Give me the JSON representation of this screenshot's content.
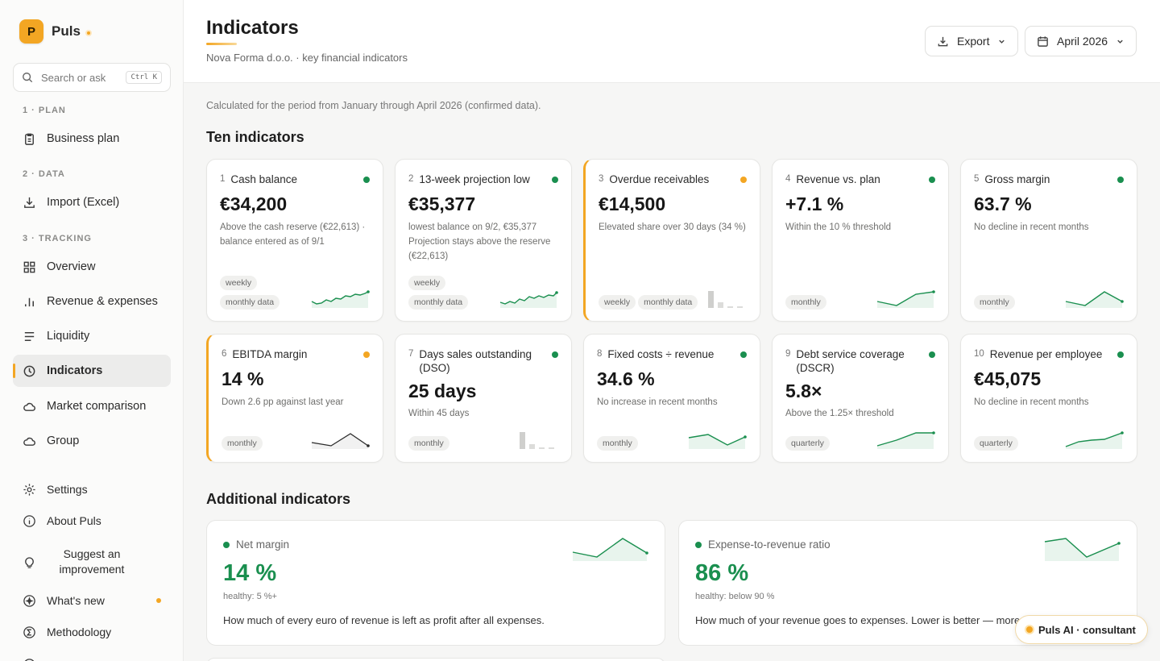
{
  "app": {
    "logo_letter": "P",
    "name": "Puls"
  },
  "search": {
    "placeholder": "Search or ask",
    "shortcut": "Ctrl K"
  },
  "sidebar": {
    "sections": [
      "1 · PLAN",
      "2 · DATA",
      "3 · TRACKING"
    ],
    "items": [
      {
        "label": "Business plan",
        "icon": "clipboard-icon"
      },
      {
        "label": "Import (Excel)",
        "icon": "download-icon"
      },
      {
        "label": "Overview",
        "icon": "grid-icon"
      },
      {
        "label": "Revenue & expenses",
        "icon": "bar-chart-icon"
      },
      {
        "label": "Liquidity",
        "icon": "lines-icon"
      },
      {
        "label": "Indicators",
        "icon": "clock-icon",
        "active": true
      },
      {
        "label": "Market comparison",
        "icon": "cloud-icon"
      },
      {
        "label": "Group",
        "icon": "cloud-icon"
      }
    ],
    "footer": [
      {
        "label": "Settings",
        "icon": "gear-icon"
      },
      {
        "label": "About Puls",
        "icon": "info-icon"
      },
      {
        "label": "Suggest an improvement",
        "icon": "lightbulb-icon"
      },
      {
        "label": "What's new",
        "icon": "sparkle-icon"
      },
      {
        "label": "Methodology",
        "icon": "sigma-icon"
      }
    ]
  },
  "header": {
    "title": "Indicators",
    "subtitle": "Nova Forma d.o.o. · key financial indicators",
    "export_label": "Export",
    "period_label": "April 2026"
  },
  "main": {
    "period_note": "Calculated for the period from January through April 2026 (confirmed data).",
    "ten_title": "Ten indicators",
    "additional_title": "Additional indicators"
  },
  "colors": {
    "accent": "#f3a623",
    "healthy": "#1a8f4f",
    "warning": "#f3a623"
  },
  "indicators": [
    {
      "num": "1",
      "title": "Cash balance",
      "status": "green",
      "value": "€34,200",
      "desc": "Above the cash reserve (€22,613) · balance entered as of 9/1",
      "tags": [
        "weekly",
        "monthly data"
      ]
    },
    {
      "num": "2",
      "title": "13-week projection low",
      "status": "green",
      "value": "€35,377",
      "desc": "lowest balance on 9/2, €35,377 Projection stays above the reserve (€22,613)",
      "tags": [
        "weekly",
        "monthly data"
      ]
    },
    {
      "num": "3",
      "title": "Overdue receivables",
      "status": "orange",
      "value": "€14,500",
      "desc": "Elevated share over 30 days (34 %)",
      "tags": [
        "weekly",
        "monthly data"
      ]
    },
    {
      "num": "4",
      "title": "Revenue vs. plan",
      "status": "green",
      "value": "+7.1 %",
      "desc": "Within the 10 % threshold",
      "tags": [
        "monthly"
      ]
    },
    {
      "num": "5",
      "title": "Gross margin",
      "status": "green",
      "value": "63.7 %",
      "desc": "No decline in recent months",
      "tags": [
        "monthly"
      ]
    },
    {
      "num": "6",
      "title": "EBITDA margin",
      "status": "orange",
      "value": "14 %",
      "desc": "Down 2.6 pp against last year",
      "tags": [
        "monthly"
      ]
    },
    {
      "num": "7",
      "title": "Days sales outstanding (DSO)",
      "status": "green",
      "value": "25 days",
      "desc": "Within 45 days",
      "tags": [
        "monthly"
      ]
    },
    {
      "num": "8",
      "title": "Fixed costs ÷ revenue",
      "status": "green",
      "value": "34.6 %",
      "desc": "No increase in recent months",
      "tags": [
        "monthly"
      ]
    },
    {
      "num": "9",
      "title": "Debt service coverage (DSCR)",
      "status": "green",
      "value": "5.8×",
      "desc": "Above the 1.25× threshold",
      "tags": [
        "quarterly"
      ]
    },
    {
      "num": "10",
      "title": "Revenue per employee",
      "status": "green",
      "value": "€45,075",
      "desc": "No decline in recent months",
      "tags": [
        "quarterly"
      ]
    }
  ],
  "additional": [
    {
      "title": "Net margin",
      "value": "14 %",
      "hint": "healthy: 5 %+",
      "desc": "How much of every euro of revenue is left as profit after all expenses."
    },
    {
      "title": "Expense-to-revenue ratio",
      "value": "86 %",
      "hint": "healthy: below 90 %",
      "desc": "How much of your revenue goes to expenses. Lower is better — more i"
    }
  ],
  "ai_button": {
    "label": "Puls AI · consultant"
  }
}
